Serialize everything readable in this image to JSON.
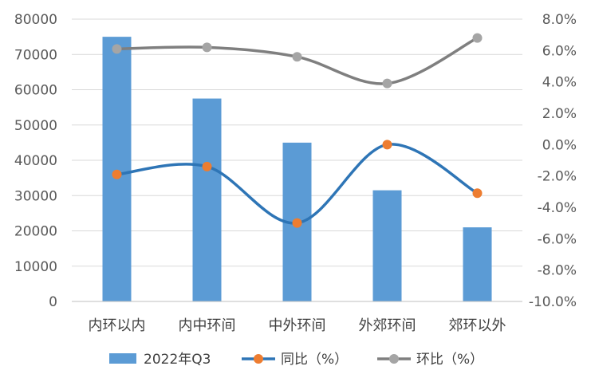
{
  "chart_data": {
    "type": "bar",
    "categories": [
      "内环以内",
      "内中环间",
      "中外环间",
      "外郊环间",
      "郊环以外"
    ],
    "series": [
      {
        "name": "2022年Q3",
        "type": "bar",
        "axis": "left",
        "color": "#5b9bd5",
        "values": [
          75000,
          57500,
          45000,
          31500,
          21000
        ]
      },
      {
        "name": "同比（%）",
        "type": "line",
        "axis": "right",
        "color": "#2e75b6",
        "marker_color": "#ed7d31",
        "values": [
          -1.9,
          -1.4,
          -5.0,
          0.0,
          -3.1
        ]
      },
      {
        "name": "环比（%）",
        "type": "line",
        "axis": "right",
        "color": "#7f7f7f",
        "marker_color": "#a5a5a5",
        "values": [
          6.1,
          6.2,
          5.6,
          3.9,
          6.8
        ]
      }
    ],
    "y_left": {
      "min": 0,
      "max": 80000,
      "step": 10000,
      "tick_labels": [
        "0",
        "10000",
        "20000",
        "30000",
        "40000",
        "50000",
        "60000",
        "70000",
        "80000"
      ]
    },
    "y_right": {
      "min": -10,
      "max": 8,
      "step": 2,
      "tick_labels": [
        "-10.0%",
        "-8.0%",
        "-6.0%",
        "-4.0%",
        "-2.0%",
        "0.0%",
        "2.0%",
        "4.0%",
        "6.0%",
        "8.0%"
      ]
    },
    "grid": true,
    "legend_position": "bottom",
    "title": "",
    "xlabel": "",
    "ylabel": ""
  }
}
